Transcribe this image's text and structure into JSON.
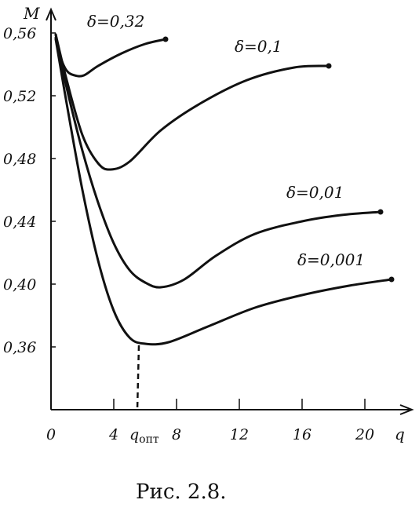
{
  "chart_data": {
    "type": "line",
    "ylabel": "M",
    "xlabel": "q",
    "caption": "Рис. 2.8.",
    "xlim": [
      0,
      22.5
    ],
    "ylim": [
      0.32,
      0.57
    ],
    "x_ticks": [
      {
        "value": 0,
        "label": "0"
      },
      {
        "value": 4,
        "label": "4"
      },
      {
        "value": 8,
        "label": "8"
      },
      {
        "value": 12,
        "label": "12"
      },
      {
        "value": 16,
        "label": "16"
      },
      {
        "value": 20,
        "label": "20"
      }
    ],
    "y_ticks": [
      {
        "value": 0.56,
        "label": "0,56"
      },
      {
        "value": 0.52,
        "label": "0,52"
      },
      {
        "value": 0.48,
        "label": "0,48"
      },
      {
        "value": 0.44,
        "label": "0,44"
      },
      {
        "value": 0.4,
        "label": "0,40"
      },
      {
        "value": 0.36,
        "label": "0,36"
      }
    ],
    "q_opt": {
      "x": 5.6,
      "y": 0.361,
      "label": "q",
      "subscript": "опт"
    },
    "series": [
      {
        "name": "δ=0,32",
        "points": [
          [
            0.3,
            0.559
          ],
          [
            0.6,
            0.545
          ],
          [
            1.0,
            0.536
          ],
          [
            1.5,
            0.533
          ],
          [
            2.1,
            0.533
          ],
          [
            3.0,
            0.539
          ],
          [
            4.5,
            0.547
          ],
          [
            6.0,
            0.553
          ],
          [
            7.3,
            0.556
          ]
        ]
      },
      {
        "name": "δ=0,1",
        "points": [
          [
            0.3,
            0.559
          ],
          [
            1.0,
            0.53
          ],
          [
            2.0,
            0.495
          ],
          [
            3.0,
            0.477
          ],
          [
            3.8,
            0.473
          ],
          [
            5.0,
            0.478
          ],
          [
            7.0,
            0.498
          ],
          [
            9.5,
            0.515
          ],
          [
            12.5,
            0.53
          ],
          [
            15.5,
            0.538
          ],
          [
            17.7,
            0.539
          ]
        ]
      },
      {
        "name": "δ=0,01",
        "points": [
          [
            0.3,
            0.557
          ],
          [
            1.0,
            0.525
          ],
          [
            2.0,
            0.485
          ],
          [
            3.0,
            0.452
          ],
          [
            4.0,
            0.426
          ],
          [
            5.0,
            0.409
          ],
          [
            6.0,
            0.401
          ],
          [
            7.0,
            0.398
          ],
          [
            8.5,
            0.403
          ],
          [
            10.5,
            0.418
          ],
          [
            13.0,
            0.432
          ],
          [
            16.0,
            0.44
          ],
          [
            18.5,
            0.444
          ],
          [
            21.0,
            0.446
          ]
        ]
      },
      {
        "name": "δ=0,001",
        "points": [
          [
            0.3,
            0.556
          ],
          [
            1.0,
            0.515
          ],
          [
            2.0,
            0.46
          ],
          [
            3.0,
            0.415
          ],
          [
            4.0,
            0.383
          ],
          [
            5.0,
            0.366
          ],
          [
            6.0,
            0.362
          ],
          [
            7.5,
            0.363
          ],
          [
            10.0,
            0.373
          ],
          [
            13.0,
            0.385
          ],
          [
            16.0,
            0.393
          ],
          [
            19.0,
            0.399
          ],
          [
            21.7,
            0.403
          ]
        ]
      }
    ],
    "label_positions": [
      "upper",
      "upper",
      "upper",
      "upper"
    ]
  }
}
